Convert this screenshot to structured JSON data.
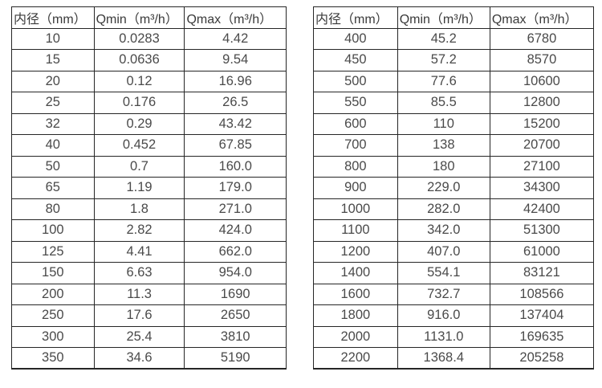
{
  "colors": {
    "background": "#ffffff",
    "border": "#262626",
    "text": "#4a4a4a"
  },
  "tables": [
    {
      "name": "small-diameter-flow-rates",
      "headers": [
        "内径（mm）",
        "Qmin（m³/h）",
        "Qmax（m³/h）"
      ],
      "rows": [
        [
          "10",
          "0.0283",
          "4.42"
        ],
        [
          "15",
          "0.0636",
          "9.54"
        ],
        [
          "20",
          "0.12",
          "16.96"
        ],
        [
          "25",
          "0.176",
          "26.5"
        ],
        [
          "32",
          "0.29",
          "43.42"
        ],
        [
          "40",
          "0.452",
          "67.85"
        ],
        [
          "50",
          "0.7",
          "160.0"
        ],
        [
          "65",
          "1.19",
          "179.0"
        ],
        [
          "80",
          "1.8",
          "271.0"
        ],
        [
          "100",
          "2.82",
          "424.0"
        ],
        [
          "125",
          "4.41",
          "662.0"
        ],
        [
          "150",
          "6.63",
          "954.0"
        ],
        [
          "200",
          "11.3",
          "1690"
        ],
        [
          "250",
          "17.6",
          "2650"
        ],
        [
          "300",
          "25.4",
          "3810"
        ],
        [
          "350",
          "34.6",
          "5190"
        ]
      ]
    },
    {
      "name": "large-diameter-flow-rates",
      "headers": [
        "内径（mm）",
        "Qmin（m³/h）",
        "Qmax（m³/h）"
      ],
      "rows": [
        [
          "400",
          "45.2",
          "6780"
        ],
        [
          "450",
          "57.2",
          "8570"
        ],
        [
          "500",
          "77.6",
          "10600"
        ],
        [
          "550",
          "85.5",
          "12800"
        ],
        [
          "600",
          "110",
          "15200"
        ],
        [
          "700",
          "138",
          "20700"
        ],
        [
          "800",
          "180",
          "27100"
        ],
        [
          "900",
          "229.0",
          "34300"
        ],
        [
          "1000",
          "282.0",
          "42400"
        ],
        [
          "1100",
          "342.0",
          "51300"
        ],
        [
          "1200",
          "407.0",
          "61000"
        ],
        [
          "1400",
          "554.1",
          "83121"
        ],
        [
          "1600",
          "732.7",
          "108566"
        ],
        [
          "1800",
          "916.0",
          "137404"
        ],
        [
          "2000",
          "1131.0",
          "169635"
        ],
        [
          "2200",
          "1368.4",
          "205258"
        ]
      ]
    }
  ]
}
